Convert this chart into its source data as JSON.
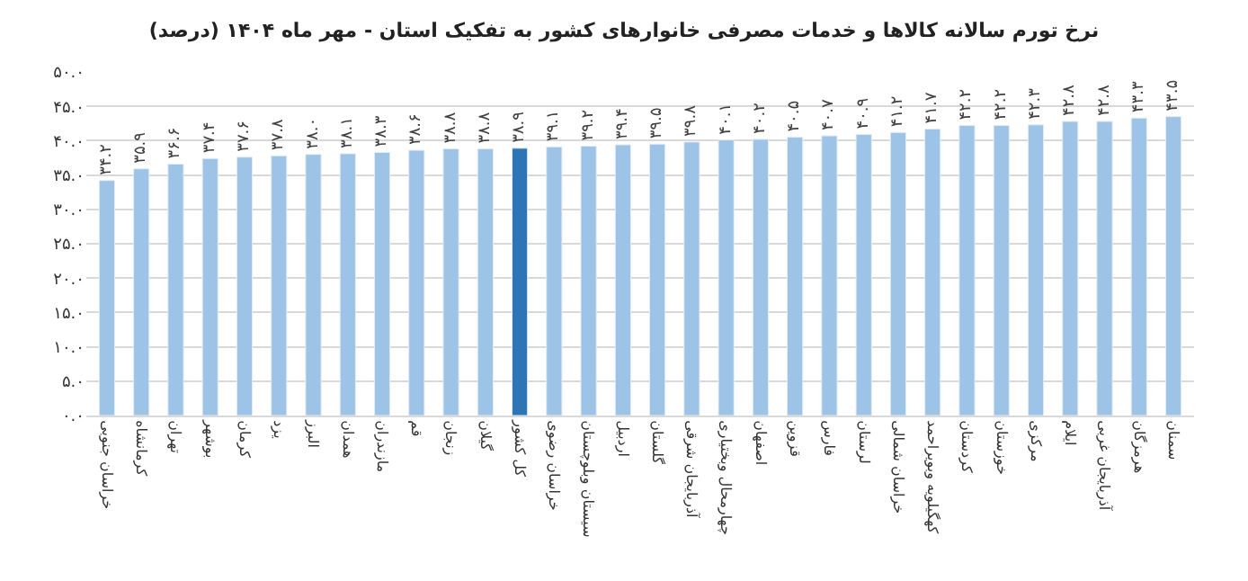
{
  "chart_data": {
    "type": "bar",
    "title": "نرخ تورم سالانه کالاها و خدمات مصرفی خانوارهای کشور به تفکیک استان - مهر ماه ۱۴۰۴ (درصد)",
    "categories": [
      "خراسان جنوبی",
      "کرمانشاه",
      "تهران",
      "بوشهر",
      "کرمان",
      "یزد",
      "البرز",
      "همدان",
      "مازندران",
      "قم",
      "زنجان",
      "گیلان",
      "کل کشور",
      "خراسان رضوی",
      "سیستان وبلوچستان",
      "اردبیل",
      "گلستان",
      "آذربایجان شرقی",
      "چهارمحال وبختیاری",
      "اصفهان",
      "قزوین",
      "فارس",
      "لرستان",
      "خراسان شمالی",
      "کهگیلویه وبویراحمد",
      "کردستان",
      "خوزستان",
      "مرکزی",
      "ایلام",
      "آذربایجان غربی",
      "هرمزگان",
      "سمنان"
    ],
    "values": [
      34.2,
      35.9,
      36.6,
      37.4,
      37.6,
      37.8,
      38.0,
      38.1,
      38.3,
      38.6,
      38.8,
      38.8,
      38.9,
      39.1,
      39.2,
      39.4,
      39.5,
      39.8,
      40.1,
      40.2,
      40.5,
      40.7,
      40.9,
      41.2,
      41.7,
      42.2,
      42.2,
      42.3,
      42.8,
      42.8,
      43.3,
      43.5
    ],
    "value_labels": [
      "۳۴.۲",
      "۳۵.۹",
      "۳۶.۶",
      "۳۷.۴",
      "۳۷.۶",
      "۳۷.۸",
      "۳۸.۰",
      "۳۸.۱",
      "۳۸.۳",
      "۳۸.۶",
      "۳۸.۸",
      "۳۸.۸",
      "۳۸.۹",
      "۳۹.۱",
      "۳۹.۲",
      "۳۹.۴",
      "۳۹.۵",
      "۳۹.۸",
      "۴۰.۱",
      "۴۰.۲",
      "۴۰.۵",
      "۴۰.۷",
      "۴۰.۹",
      "۴۱.۲",
      "۴۱.۷",
      "۴۲.۲",
      "۴۲.۲",
      "۴۲.۳",
      "۴۲.۸",
      "۴۲.۸",
      "۴۳.۳",
      "۴۳.۵"
    ],
    "colors": [
      "#9dc3e6",
      "#9dc3e6",
      "#9dc3e6",
      "#9dc3e6",
      "#9dc3e6",
      "#9dc3e6",
      "#9dc3e6",
      "#9dc3e6",
      "#9dc3e6",
      "#9dc3e6",
      "#9dc3e6",
      "#9dc3e6",
      "#2e75b6",
      "#9dc3e6",
      "#9dc3e6",
      "#9dc3e6",
      "#9dc3e6",
      "#9dc3e6",
      "#9dc3e6",
      "#9dc3e6",
      "#9dc3e6",
      "#9dc3e6",
      "#9dc3e6",
      "#9dc3e6",
      "#9dc3e6",
      "#9dc3e6",
      "#9dc3e6",
      "#9dc3e6",
      "#9dc3e6",
      "#9dc3e6",
      "#9dc3e6",
      "#9dc3e6"
    ],
    "ylim": [
      0,
      50
    ],
    "yticks": [
      {
        "value": 0,
        "label": "۰.۰"
      },
      {
        "value": 5,
        "label": "۵.۰"
      },
      {
        "value": 10,
        "label": "۱۰.۰"
      },
      {
        "value": 15,
        "label": "۱۵.۰"
      },
      {
        "value": 20,
        "label": "۲۰.۰"
      },
      {
        "value": 25,
        "label": "۲۵.۰"
      },
      {
        "value": 30,
        "label": "۳۰.۰"
      },
      {
        "value": 35,
        "label": "۳۵.۰"
      },
      {
        "value": 40,
        "label": "۴۰.۰"
      },
      {
        "value": 45,
        "label": "۴۵.۰"
      },
      {
        "value": 50,
        "label": "۵۰.۰"
      }
    ],
    "grid": "y",
    "legend": false
  }
}
